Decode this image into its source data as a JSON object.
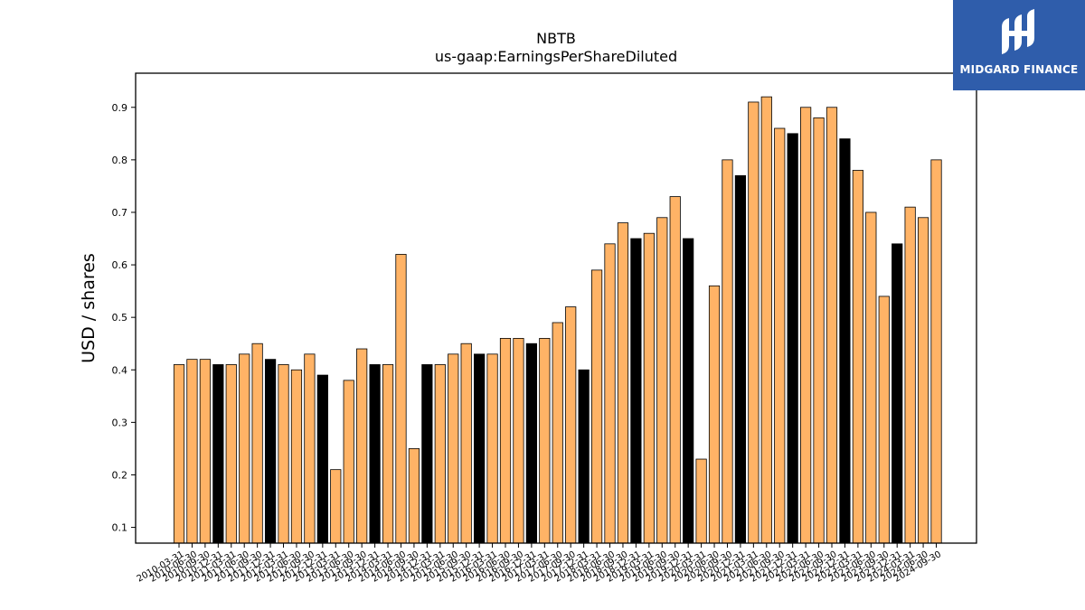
{
  "brand": {
    "name": "MIDGARD FINANCE",
    "mark_icon": "midgard-logo-icon",
    "bg_color": "#2f5dab"
  },
  "chart_data": {
    "type": "bar",
    "title": "NBTB",
    "subtitle": "us-gaap:EarningsPerShareDiluted",
    "xlabel": "",
    "ylabel": "USD / shares",
    "ylim": [
      0.07,
      0.965
    ],
    "yticks": [
      0.1,
      0.2,
      0.3,
      0.4,
      0.5,
      0.6,
      0.7,
      0.8,
      0.9
    ],
    "grid": false,
    "colors": {
      "quarter": "#ffb366",
      "annual": "#000000",
      "edge": "#000000"
    },
    "categories": [
      "2010-03-31",
      "2010-06-30",
      "2010-09-30",
      "2010-12-31",
      "2011-03-31",
      "2011-06-30",
      "2011-09-30",
      "2011-12-31",
      "2012-03-31",
      "2012-06-30",
      "2012-09-30",
      "2012-12-31",
      "2013-03-31",
      "2013-06-30",
      "2013-09-30",
      "2013-12-31",
      "2014-03-31",
      "2014-06-30",
      "2014-09-30",
      "2014-12-31",
      "2015-03-31",
      "2015-06-30",
      "2015-09-30",
      "2015-12-31",
      "2016-03-31",
      "2016-06-30",
      "2016-09-30",
      "2016-12-31",
      "2017-03-31",
      "2017-06-30",
      "2017-09-30",
      "2017-12-31",
      "2018-03-31",
      "2018-06-30",
      "2018-09-30",
      "2018-12-31",
      "2019-03-31",
      "2019-06-30",
      "2019-09-30",
      "2019-12-31",
      "2020-03-31",
      "2020-06-30",
      "2020-09-30",
      "2020-12-31",
      "2021-03-31",
      "2021-06-30",
      "2021-09-30",
      "2021-12-31",
      "2022-03-31",
      "2022-06-30",
      "2022-09-30",
      "2022-12-31",
      "2023-03-31",
      "2023-06-30",
      "2023-09-30",
      "2023-12-31",
      "2024-03-31",
      "2024-06-30",
      "2024-09-30"
    ],
    "values": [
      0.41,
      0.42,
      0.42,
      0.41,
      0.41,
      0.43,
      0.45,
      0.42,
      0.41,
      0.4,
      0.43,
      0.39,
      0.21,
      0.38,
      0.44,
      0.41,
      0.41,
      0.62,
      0.25,
      0.41,
      0.41,
      0.43,
      0.45,
      0.43,
      0.43,
      0.46,
      0.46,
      0.45,
      0.46,
      0.49,
      0.52,
      0.4,
      0.59,
      0.64,
      0.68,
      0.65,
      0.66,
      0.69,
      0.73,
      0.65,
      0.23,
      0.56,
      0.8,
      0.77,
      0.91,
      0.92,
      0.86,
      0.85,
      0.9,
      0.88,
      0.9,
      0.84,
      0.78,
      0.7,
      0.54,
      0.64,
      0.71,
      0.69,
      0.8
    ],
    "annual_flags": [
      0,
      0,
      0,
      1,
      0,
      0,
      0,
      1,
      0,
      0,
      0,
      1,
      0,
      0,
      0,
      1,
      0,
      0,
      0,
      1,
      0,
      0,
      0,
      1,
      0,
      0,
      0,
      1,
      0,
      0,
      0,
      1,
      0,
      0,
      0,
      1,
      0,
      0,
      0,
      1,
      0,
      0,
      0,
      1,
      0,
      0,
      0,
      1,
      0,
      0,
      0,
      1,
      0,
      0,
      0,
      1,
      0,
      0,
      0
    ]
  }
}
